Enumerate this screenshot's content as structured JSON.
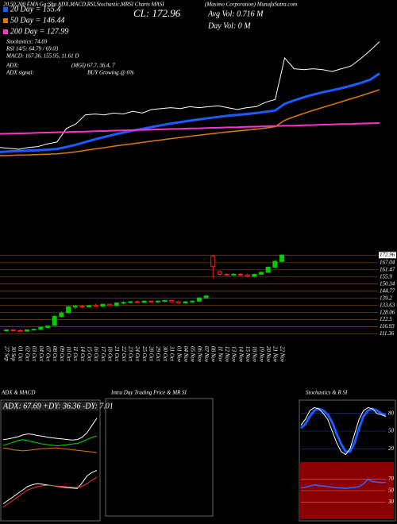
{
  "header": {
    "title_left": "20,50,200 EMA Ga:Sha ADX,MACD,RSI,Stochastic,MRSI Charts MASI",
    "title_right": "(Masimo Corporation) MunafaSutra.com",
    "close": "CL: 172.96",
    "avg_vol": "Avg Vol: 0.716  M",
    "day_vol": "Day Vol: 0  M",
    "stochastics": "Stochastics: 74.69",
    "rsi": "RSI 14/5: 64.79 / 69.03",
    "macd": "MACD: 167.36, 155.95, 11.61 D",
    "adx": "ADX:",
    "adx_values": "(MGI) 67.7, 36.4, 7",
    "adx_signal": "ADX signal:",
    "signal": "BUY Growing @ 6%"
  },
  "panels": {
    "adx_macd": "ADX & MACD",
    "intraday": "Intra Day Trading Price & MR SI",
    "stochastics_rsi": "Stochastics & R SI"
  },
  "chart_data": [
    {
      "type": "line",
      "ylim": [
        60,
        185
      ],
      "series": [
        {
          "color": "#ffffff",
          "values": [
            114.5,
            114,
            113.5,
            114.5,
            115,
            116.5,
            117.5,
            125,
            127.5,
            132.5,
            133,
            132.5,
            133.5,
            133,
            134.5,
            133.5,
            135.5,
            136,
            136.5,
            136,
            137,
            136.5,
            137,
            137.5,
            136.5,
            135.5,
            136.5,
            137,
            139.5,
            141,
            164,
            158,
            157.5,
            158,
            157.5,
            156.5,
            158,
            159.5,
            163.5,
            168,
            172.96
          ]
        },
        {
          "name": "20 Day = 155.4",
          "color": "#1a5cff",
          "line_width": 3,
          "values": [
            112,
            112.3,
            112.5,
            112.8,
            113,
            113.3,
            113.7,
            114.8,
            116,
            117.5,
            119,
            120.3,
            121.6,
            122.7,
            123.8,
            124.8,
            125.8,
            126.8,
            127.7,
            128.5,
            129.3,
            130,
            130.7,
            131.4,
            132,
            132.5,
            133,
            133.5,
            134.2,
            134.9,
            138.6,
            140.5,
            142.2,
            143.7,
            145,
            146.1,
            147.3,
            148.6,
            150.1,
            151.9,
            155.4
          ]
        },
        {
          "name": "50 Day = 146.44",
          "color": "#e07a00",
          "line_width": 1.5,
          "values": [
            110,
            110.1,
            110.3,
            110.4,
            110.6,
            110.8,
            111,
            111.5,
            112.1,
            112.9,
            113.7,
            114.4,
            115.2,
            115.9,
            116.6,
            117.3,
            118,
            118.7,
            119.4,
            120,
            120.7,
            121.3,
            121.9,
            122.5,
            123.1,
            123.6,
            124.1,
            124.6,
            125.2,
            126,
            129.5,
            131.5,
            133.3,
            135,
            136.6,
            138.2,
            139.8,
            141.4,
            143,
            144.7,
            146.44
          ]
        },
        {
          "name": "200 Day = 127.99",
          "color": "#ff33cc",
          "line_width": 2,
          "values": [
            122,
            122.1,
            122.3,
            122.4,
            122.6,
            122.7,
            122.9,
            123,
            123.2,
            123.3,
            123.5,
            123.6,
            123.8,
            123.9,
            124.1,
            124.2,
            124.4,
            124.5,
            124.7,
            124.8,
            125,
            125.1,
            125.3,
            125.4,
            125.6,
            125.7,
            125.9,
            126,
            126.2,
            126.3,
            126.5,
            126.6,
            126.8,
            126.9,
            127.1,
            127.2,
            127.4,
            127.5,
            127.7,
            127.8,
            127.99
          ]
        }
      ]
    },
    {
      "type": "candlestick",
      "up_color": "#00cc00",
      "down_color": "#ff1a1a",
      "grid": true,
      "grid_color": "#8a4a00",
      "ylim": [
        108,
        175
      ],
      "yticks": [
        172.96,
        167.04,
        161.47,
        155.9,
        150.34,
        144.77,
        139.2,
        133.63,
        128.06,
        122.5,
        116.93,
        111.36
      ],
      "categories": [
        "27 Sep",
        "30 Sep",
        "01 Oct",
        "02 Oct",
        "03 Oct",
        "04 Oct",
        "07 Oct",
        "08 Oct",
        "09 Oct",
        "10 Oct",
        "11 Oct",
        "14 Oct",
        "15 Oct",
        "16 Oct",
        "17 Oct",
        "18 Oct",
        "21 Oct",
        "22 Oct",
        "23 Oct",
        "24 Oct",
        "25 Oct",
        "28 Oct",
        "29 Oct",
        "30 Oct",
        "31 Oct",
        "01 Nov",
        "04 Nov",
        "05 Nov",
        "06 Nov",
        "07 Nov",
        "08 Nov",
        "11 Nov",
        "12 Nov",
        "13 Nov",
        "14 Nov",
        "15 Nov",
        "18 Nov",
        "19 Nov",
        "20 Nov",
        "21 Nov",
        "22 Nov"
      ],
      "open": [
        114,
        114.5,
        114,
        113.5,
        114.5,
        115,
        116.5,
        118,
        125,
        128,
        132.5,
        133,
        132.5,
        133.5,
        133,
        134.5,
        133.5,
        135.5,
        136,
        136.5,
        136,
        137,
        136.5,
        137,
        137.5,
        136.5,
        135.5,
        136.5,
        137,
        139.5,
        172,
        160,
        158,
        157.5,
        158,
        157.5,
        156.5,
        158,
        159.5,
        163.5,
        168
      ],
      "high": [
        115,
        115,
        115,
        115,
        115.5,
        117,
        118,
        126,
        129,
        133,
        134,
        134,
        134,
        135,
        135,
        135,
        136,
        137,
        137,
        137.5,
        137.5,
        137.5,
        137.5,
        138,
        138,
        137.5,
        137,
        137.5,
        140,
        142,
        173,
        161,
        159,
        159,
        159,
        158.5,
        158.5,
        160,
        164,
        169,
        173.5
      ],
      "low": [
        113,
        113.5,
        113,
        113,
        114,
        114.5,
        116,
        118,
        124,
        127,
        131,
        131.5,
        132,
        132.5,
        132,
        133,
        133,
        134.5,
        135,
        135.5,
        135.5,
        136,
        135.5,
        136,
        136,
        135,
        135,
        135.5,
        136.5,
        139,
        155,
        157,
        157,
        157,
        156.5,
        156,
        156,
        157.5,
        159,
        163,
        167.5
      ],
      "close": [
        114.5,
        114,
        113.5,
        114.5,
        115,
        116.5,
        117.5,
        125,
        127.5,
        132.5,
        133,
        132.5,
        133.5,
        133,
        134.5,
        133.5,
        135.5,
        136,
        136.5,
        136,
        137,
        136.5,
        137,
        137.5,
        136.5,
        135.5,
        136.5,
        137,
        139.5,
        141,
        164,
        158,
        157.5,
        158,
        157.5,
        156.5,
        158,
        159.5,
        163.5,
        168,
        172.96
      ]
    },
    {
      "type": "line",
      "title": "ADX: 67.69 +DY: 36.36 -DY: 7.01",
      "ylim": [
        0,
        80
      ],
      "series": [
        {
          "color": "#ffffff",
          "values": [
            30,
            31,
            33,
            35,
            38,
            40,
            39,
            37,
            36,
            34,
            33,
            32,
            31,
            30,
            29,
            30,
            34,
            42,
            55,
            67.69
          ]
        },
        {
          "color": "#00dd00",
          "values": [
            20,
            22,
            25,
            28,
            30,
            28,
            26,
            24,
            22,
            21,
            20,
            19,
            20,
            21,
            22,
            23,
            26,
            30,
            34,
            36.36
          ]
        },
        {
          "color": "#e07a00",
          "values": [
            15,
            14,
            12,
            11,
            10,
            11,
            12,
            13,
            14,
            14,
            15,
            15,
            14,
            13,
            12,
            11,
            10,
            9,
            8,
            7.01
          ]
        }
      ]
    },
    {
      "type": "line",
      "ylim": [
        -2,
        14
      ],
      "series": [
        {
          "color": "#ffffff",
          "values": [
            2,
            3,
            4,
            5,
            6,
            7,
            7.5,
            7.8,
            7.6,
            7.4,
            7.2,
            7,
            6.8,
            6.6,
            6.5,
            6.4,
            8,
            10,
            11,
            11.61
          ]
        },
        {
          "color": "#ff3333",
          "values": [
            1,
            2,
            3,
            4,
            5,
            6,
            6.5,
            7,
            7.2,
            7.3,
            7.2,
            7.1,
            7,
            6.9,
            6.8,
            6.7,
            7,
            7.8,
            8.8,
            9.7
          ]
        }
      ]
    },
    {
      "type": "line",
      "ylim": [
        0,
        100
      ],
      "yticks": [
        20,
        50,
        80
      ],
      "grid": true,
      "grid_color": "#2244aa",
      "series": [
        {
          "color": "#1a5cff",
          "line_width": 3,
          "values": [
            55,
            62,
            75,
            85,
            88,
            85,
            78,
            65,
            45,
            28,
            15,
            15,
            30,
            55,
            75,
            85,
            88,
            85,
            80,
            77
          ]
        },
        {
          "color": "#ffffff",
          "values": [
            60,
            70,
            85,
            90,
            88,
            80,
            70,
            50,
            30,
            15,
            10,
            20,
            45,
            70,
            85,
            90,
            88,
            80,
            78,
            74.69
          ]
        }
      ]
    },
    {
      "type": "line",
      "ylim": [
        0,
        100
      ],
      "yticks": [
        30,
        50,
        70
      ],
      "grid": true,
      "grid_color": "#dd6666",
      "background": "#8b0000",
      "series": [
        {
          "color": "#3366ff",
          "line_width": 1.5,
          "values": [
            55,
            56,
            58,
            60,
            59,
            58,
            57,
            56,
            55,
            55,
            54,
            55,
            56,
            57,
            62,
            70,
            66,
            65,
            64,
            64.79
          ]
        }
      ]
    }
  ]
}
